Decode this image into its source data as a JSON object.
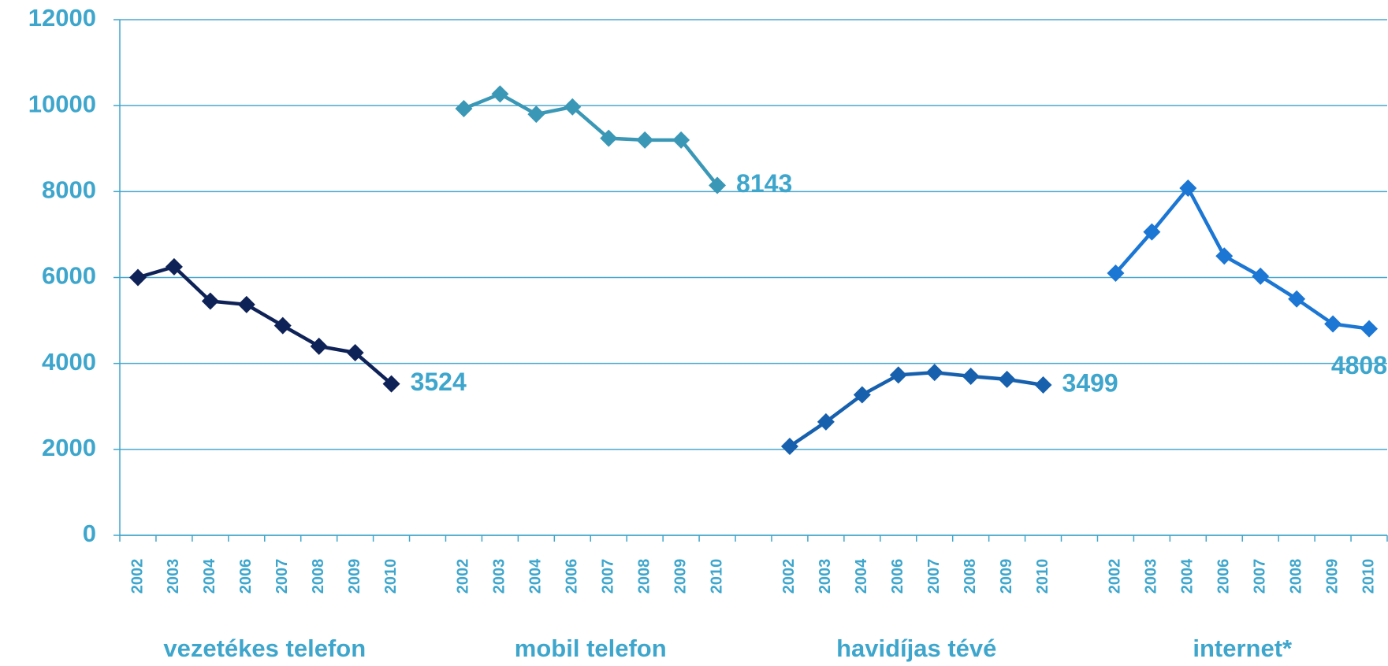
{
  "chart_data": {
    "type": "line",
    "categories": [
      "2002",
      "2003",
      "2004",
      "2006",
      "2007",
      "2008",
      "2009",
      "2010",
      null,
      "2002",
      "2003",
      "2004",
      "2006",
      "2007",
      "2008",
      "2009",
      "2010",
      null,
      "2002",
      "2003",
      "2004",
      "2006",
      "2007",
      "2008",
      "2009",
      "2010",
      null,
      "2002",
      "2003",
      "2004",
      "2006",
      "2007",
      "2008",
      "2009",
      "2010"
    ],
    "series": [
      {
        "name": "vezetékes telefon",
        "color": "#0f2257",
        "values": [
          6000,
          6250,
          5450,
          5370,
          4880,
          4400,
          4250,
          3524,
          null,
          null,
          null,
          null,
          null,
          null,
          null,
          null,
          null,
          null,
          null,
          null,
          null,
          null,
          null,
          null,
          null,
          null,
          null,
          null,
          null,
          null,
          null,
          null,
          null,
          null,
          null
        ]
      },
      {
        "name": "mobil telefon",
        "color": "#3a98b6",
        "values": [
          null,
          null,
          null,
          null,
          null,
          null,
          null,
          null,
          null,
          9930,
          10270,
          9800,
          9970,
          9240,
          9200,
          9200,
          8143,
          null,
          null,
          null,
          null,
          null,
          null,
          null,
          null,
          null,
          null,
          null,
          null,
          null,
          null,
          null,
          null,
          null,
          null
        ]
      },
      {
        "name": "havidíjas tévé",
        "color": "#1660ae",
        "values": [
          null,
          null,
          null,
          null,
          null,
          null,
          null,
          null,
          null,
          null,
          null,
          null,
          null,
          null,
          null,
          null,
          null,
          null,
          2070,
          2640,
          3270,
          3730,
          3790,
          3700,
          3630,
          3499,
          null,
          null,
          null,
          null,
          null,
          null,
          null,
          null,
          null
        ]
      },
      {
        "name": "internet*",
        "color": "#1b76d4",
        "values": [
          null,
          null,
          null,
          null,
          null,
          null,
          null,
          null,
          null,
          null,
          null,
          null,
          null,
          null,
          null,
          null,
          null,
          null,
          null,
          null,
          null,
          null,
          null,
          null,
          null,
          null,
          null,
          6100,
          7060,
          8080,
          6500,
          6030,
          5500,
          4920,
          4808
        ]
      }
    ],
    "ylim": [
      0,
      12000
    ],
    "yticks": [
      0,
      2000,
      4000,
      6000,
      8000,
      10000,
      12000
    ],
    "grid": true
  }
}
